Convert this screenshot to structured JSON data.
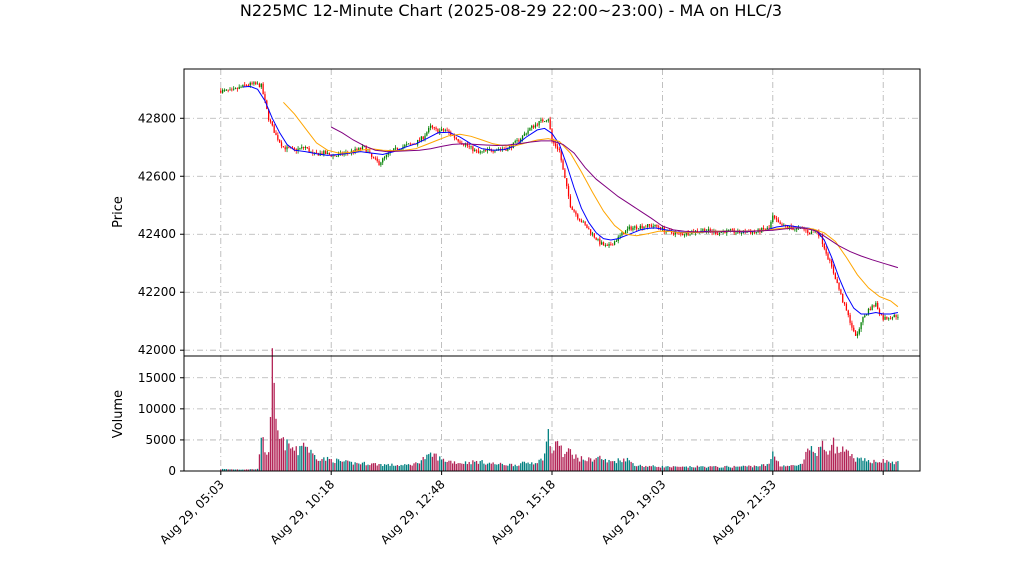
{
  "chart_data": {
    "type": "candlestick",
    "title": "N225MC 12-Minute Chart (2025-08-29 22:00~23:00) - MA on HLC/3",
    "price_panel": {
      "ylabel": "Price",
      "ylim": [
        41980,
        42970
      ],
      "yticks": [
        42000,
        42200,
        42400,
        42600,
        42800
      ],
      "grid": true
    },
    "volume_panel": {
      "ylabel": "Volume",
      "ylim": [
        0,
        18500
      ],
      "yticks": [
        0,
        5000,
        10000,
        15000
      ],
      "grid": true
    },
    "xlim": [
      -5,
      195
    ],
    "xticks": [
      {
        "pos": 5,
        "label": "Aug 29, 05:03"
      },
      {
        "pos": 35,
        "label": "Aug 29, 10:18"
      },
      {
        "pos": 65,
        "label": "Aug 29, 12:48"
      },
      {
        "pos": 95,
        "label": "Aug 29, 15:18"
      },
      {
        "pos": 125,
        "label": "Aug 29, 19:03"
      },
      {
        "pos": 155,
        "label": "Aug 29, 21:33"
      },
      {
        "pos": 185,
        "label": ""
      }
    ],
    "price_path": [
      [
        5,
        42895
      ],
      [
        8,
        42893
      ],
      [
        10,
        42905
      ],
      [
        12,
        42915
      ],
      [
        14,
        42918
      ],
      [
        16,
        42912
      ],
      [
        18,
        42800
      ],
      [
        20,
        42740
      ],
      [
        22,
        42700
      ],
      [
        25,
        42690
      ],
      [
        28,
        42700
      ],
      [
        30,
        42675
      ],
      [
        33,
        42680
      ],
      [
        36,
        42670
      ],
      [
        39,
        42680
      ],
      [
        42,
        42690
      ],
      [
        44,
        42700
      ],
      [
        46,
        42665
      ],
      [
        48,
        42645
      ],
      [
        50,
        42670
      ],
      [
        52,
        42690
      ],
      [
        55,
        42705
      ],
      [
        58,
        42715
      ],
      [
        60,
        42735
      ],
      [
        62,
        42770
      ],
      [
        64,
        42755
      ],
      [
        66,
        42760
      ],
      [
        68,
        42740
      ],
      [
        70,
        42720
      ],
      [
        72,
        42705
      ],
      [
        75,
        42680
      ],
      [
        78,
        42690
      ],
      [
        80,
        42695
      ],
      [
        83,
        42695
      ],
      [
        86,
        42725
      ],
      [
        89,
        42765
      ],
      [
        92,
        42790
      ],
      [
        94,
        42800
      ],
      [
        95,
        42720
      ],
      [
        97,
        42690
      ],
      [
        98,
        42620
      ],
      [
        100,
        42500
      ],
      [
        102,
        42460
      ],
      [
        104,
        42430
      ],
      [
        106,
        42400
      ],
      [
        108,
        42370
      ],
      [
        110,
        42355
      ],
      [
        112,
        42375
      ],
      [
        114,
        42400
      ],
      [
        116,
        42420
      ],
      [
        118,
        42425
      ],
      [
        120,
        42428
      ],
      [
        122,
        42430
      ],
      [
        124,
        42425
      ],
      [
        126,
        42410
      ],
      [
        128,
        42405
      ],
      [
        130,
        42400
      ],
      [
        132,
        42405
      ],
      [
        134,
        42410
      ],
      [
        136,
        42415
      ],
      [
        138,
        42410
      ],
      [
        140,
        42405
      ],
      [
        142,
        42410
      ],
      [
        144,
        42410
      ],
      [
        146,
        42405
      ],
      [
        148,
        42410
      ],
      [
        150,
        42405
      ],
      [
        152,
        42415
      ],
      [
        154,
        42420
      ],
      [
        155,
        42460
      ],
      [
        157,
        42430
      ],
      [
        159,
        42425
      ],
      [
        161,
        42418
      ],
      [
        163,
        42420
      ],
      [
        165,
        42405
      ],
      [
        167,
        42410
      ],
      [
        168,
        42390
      ],
      [
        170,
        42320
      ],
      [
        172,
        42250
      ],
      [
        174,
        42170
      ],
      [
        176,
        42100
      ],
      [
        177,
        42060
      ],
      [
        178,
        42050
      ],
      [
        179,
        42100
      ],
      [
        181,
        42140
      ],
      [
        183,
        42160
      ],
      [
        184,
        42130
      ],
      [
        185,
        42110
      ],
      [
        187,
        42115
      ],
      [
        189,
        42120
      ]
    ],
    "volume_path": [
      [
        5,
        300
      ],
      [
        10,
        250
      ],
      [
        15,
        300
      ],
      [
        16,
        6500
      ],
      [
        17,
        2500
      ],
      [
        18,
        3500
      ],
      [
        19,
        16500
      ],
      [
        20,
        7000
      ],
      [
        21,
        5000
      ],
      [
        22,
        4500
      ],
      [
        24,
        3800
      ],
      [
        26,
        3000
      ],
      [
        27,
        4800
      ],
      [
        28,
        4200
      ],
      [
        30,
        2600
      ],
      [
        32,
        2000
      ],
      [
        35,
        1800
      ],
      [
        38,
        1500
      ],
      [
        40,
        1300
      ],
      [
        45,
        1200
      ],
      [
        50,
        1000
      ],
      [
        55,
        900
      ],
      [
        58,
        1200
      ],
      [
        60,
        2000
      ],
      [
        63,
        2600
      ],
      [
        65,
        1800
      ],
      [
        70,
        1300
      ],
      [
        75,
        1500
      ],
      [
        80,
        1100
      ],
      [
        85,
        1000
      ],
      [
        88,
        1300
      ],
      [
        90,
        1400
      ],
      [
        92,
        1700
      ],
      [
        93,
        2800
      ],
      [
        94,
        6000
      ],
      [
        95,
        3000
      ],
      [
        97,
        4800
      ],
      [
        98,
        2500
      ],
      [
        100,
        3200
      ],
      [
        102,
        2000
      ],
      [
        105,
        1800
      ],
      [
        108,
        2200
      ],
      [
        110,
        1500
      ],
      [
        112,
        1600
      ],
      [
        115,
        2000
      ],
      [
        118,
        900
      ],
      [
        120,
        800
      ],
      [
        125,
        700
      ],
      [
        130,
        600
      ],
      [
        135,
        700
      ],
      [
        140,
        650
      ],
      [
        145,
        700
      ],
      [
        150,
        800
      ],
      [
        154,
        1000
      ],
      [
        155,
        3000
      ],
      [
        157,
        900
      ],
      [
        160,
        800
      ],
      [
        163,
        1000
      ],
      [
        164,
        2500
      ],
      [
        165,
        3600
      ],
      [
        167,
        2800
      ],
      [
        168,
        4200
      ],
      [
        170,
        3000
      ],
      [
        171,
        5600
      ],
      [
        172,
        3300
      ],
      [
        174,
        3200
      ],
      [
        176,
        2500
      ],
      [
        178,
        1800
      ],
      [
        181,
        1600
      ],
      [
        184,
        1700
      ],
      [
        186,
        1500
      ],
      [
        189,
        1300
      ]
    ],
    "ma_lines": [
      {
        "color": "#0000ff",
        "start": 11,
        "values": [
          [
            11,
            42908
          ],
          [
            13,
            42910
          ],
          [
            15,
            42900
          ],
          [
            17,
            42860
          ],
          [
            19,
            42800
          ],
          [
            21,
            42750
          ],
          [
            23,
            42710
          ],
          [
            25,
            42690
          ],
          [
            28,
            42685
          ],
          [
            31,
            42678
          ],
          [
            34,
            42672
          ],
          [
            37,
            42675
          ],
          [
            40,
            42680
          ],
          [
            43,
            42685
          ],
          [
            46,
            42680
          ],
          [
            49,
            42675
          ],
          [
            52,
            42685
          ],
          [
            55,
            42700
          ],
          [
            58,
            42712
          ],
          [
            61,
            42730
          ],
          [
            64,
            42750
          ],
          [
            67,
            42752
          ],
          [
            70,
            42735
          ],
          [
            73,
            42712
          ],
          [
            76,
            42695
          ],
          [
            79,
            42690
          ],
          [
            82,
            42692
          ],
          [
            85,
            42705
          ],
          [
            88,
            42735
          ],
          [
            91,
            42760
          ],
          [
            93,
            42765
          ],
          [
            95,
            42748
          ],
          [
            97,
            42710
          ],
          [
            99,
            42640
          ],
          [
            101,
            42560
          ],
          [
            103,
            42490
          ],
          [
            105,
            42440
          ],
          [
            107,
            42405
          ],
          [
            109,
            42385
          ],
          [
            111,
            42380
          ],
          [
            113,
            42385
          ],
          [
            115,
            42395
          ],
          [
            117,
            42405
          ],
          [
            119,
            42415
          ],
          [
            121,
            42420
          ],
          [
            123,
            42422
          ],
          [
            126,
            42415
          ],
          [
            129,
            42408
          ],
          [
            132,
            42405
          ],
          [
            135,
            42408
          ],
          [
            138,
            42410
          ],
          [
            141,
            42410
          ],
          [
            144,
            42410
          ],
          [
            147,
            42408
          ],
          [
            150,
            42410
          ],
          [
            153,
            42414
          ],
          [
            156,
            42425
          ],
          [
            159,
            42430
          ],
          [
            162,
            42425
          ],
          [
            165,
            42420
          ],
          [
            167,
            42410
          ],
          [
            169,
            42380
          ],
          [
            171,
            42320
          ],
          [
            173,
            42250
          ],
          [
            175,
            42190
          ],
          [
            177,
            42145
          ],
          [
            179,
            42125
          ],
          [
            181,
            42125
          ],
          [
            183,
            42130
          ],
          [
            185,
            42125
          ],
          [
            187,
            42125
          ],
          [
            189,
            42130
          ]
        ]
      },
      {
        "color": "#ffa500",
        "start": 22,
        "values": [
          [
            22,
            42855
          ],
          [
            25,
            42815
          ],
          [
            28,
            42765
          ],
          [
            31,
            42715
          ],
          [
            34,
            42690
          ],
          [
            37,
            42680
          ],
          [
            40,
            42682
          ],
          [
            43,
            42690
          ],
          [
            46,
            42695
          ],
          [
            49,
            42690
          ],
          [
            52,
            42688
          ],
          [
            55,
            42690
          ],
          [
            58,
            42695
          ],
          [
            61,
            42710
          ],
          [
            64,
            42725
          ],
          [
            67,
            42740
          ],
          [
            70,
            42745
          ],
          [
            73,
            42738
          ],
          [
            76,
            42725
          ],
          [
            79,
            42712
          ],
          [
            82,
            42705
          ],
          [
            85,
            42705
          ],
          [
            88,
            42715
          ],
          [
            91,
            42725
          ],
          [
            94,
            42730
          ],
          [
            97,
            42720
          ],
          [
            100,
            42680
          ],
          [
            103,
            42615
          ],
          [
            106,
            42545
          ],
          [
            109,
            42480
          ],
          [
            112,
            42430
          ],
          [
            115,
            42400
          ],
          [
            118,
            42395
          ],
          [
            121,
            42402
          ],
          [
            124,
            42410
          ],
          [
            127,
            42410
          ],
          [
            130,
            42405
          ],
          [
            133,
            42405
          ],
          [
            136,
            42407
          ],
          [
            139,
            42410
          ],
          [
            142,
            42410
          ],
          [
            145,
            42410
          ],
          [
            148,
            42410
          ],
          [
            151,
            42412
          ],
          [
            154,
            42415
          ],
          [
            157,
            42420
          ],
          [
            160,
            42422
          ],
          [
            163,
            42422
          ],
          [
            166,
            42418
          ],
          [
            169,
            42405
          ],
          [
            172,
            42375
          ],
          [
            175,
            42320
          ],
          [
            178,
            42260
          ],
          [
            181,
            42215
          ],
          [
            184,
            42185
          ],
          [
            187,
            42170
          ],
          [
            189,
            42150
          ]
        ]
      },
      {
        "color": "#800080",
        "start": 35,
        "values": [
          [
            35,
            42770
          ],
          [
            38,
            42750
          ],
          [
            41,
            42725
          ],
          [
            44,
            42705
          ],
          [
            47,
            42690
          ],
          [
            50,
            42685
          ],
          [
            53,
            42686
          ],
          [
            56,
            42688
          ],
          [
            59,
            42690
          ],
          [
            62,
            42695
          ],
          [
            65,
            42703
          ],
          [
            68,
            42710
          ],
          [
            71,
            42712
          ],
          [
            74,
            42710
          ],
          [
            77,
            42708
          ],
          [
            80,
            42706
          ],
          [
            83,
            42708
          ],
          [
            86,
            42712
          ],
          [
            89,
            42718
          ],
          [
            92,
            42722
          ],
          [
            95,
            42722
          ],
          [
            98,
            42710
          ],
          [
            101,
            42680
          ],
          [
            104,
            42630
          ],
          [
            107,
            42590
          ],
          [
            110,
            42560
          ],
          [
            113,
            42530
          ],
          [
            116,
            42505
          ],
          [
            119,
            42480
          ],
          [
            122,
            42455
          ],
          [
            125,
            42428
          ],
          [
            128,
            42415
          ],
          [
            131,
            42410
          ],
          [
            134,
            42408
          ],
          [
            137,
            42408
          ],
          [
            140,
            42408
          ],
          [
            143,
            42410
          ],
          [
            146,
            42410
          ],
          [
            149,
            42410
          ],
          [
            152,
            42412
          ],
          [
            155,
            42414
          ],
          [
            158,
            42418
          ],
          [
            161,
            42422
          ],
          [
            164,
            42420
          ],
          [
            167,
            42410
          ],
          [
            170,
            42385
          ],
          [
            173,
            42360
          ],
          [
            176,
            42340
          ],
          [
            179,
            42325
          ],
          [
            182,
            42312
          ],
          [
            185,
            42300
          ],
          [
            189,
            42285
          ]
        ]
      }
    ],
    "colors": {
      "up": "#008000",
      "down": "#ff0000",
      "volume_up": "#008080",
      "volume_down": "#b22255",
      "grid": "#b0b0b0"
    }
  }
}
